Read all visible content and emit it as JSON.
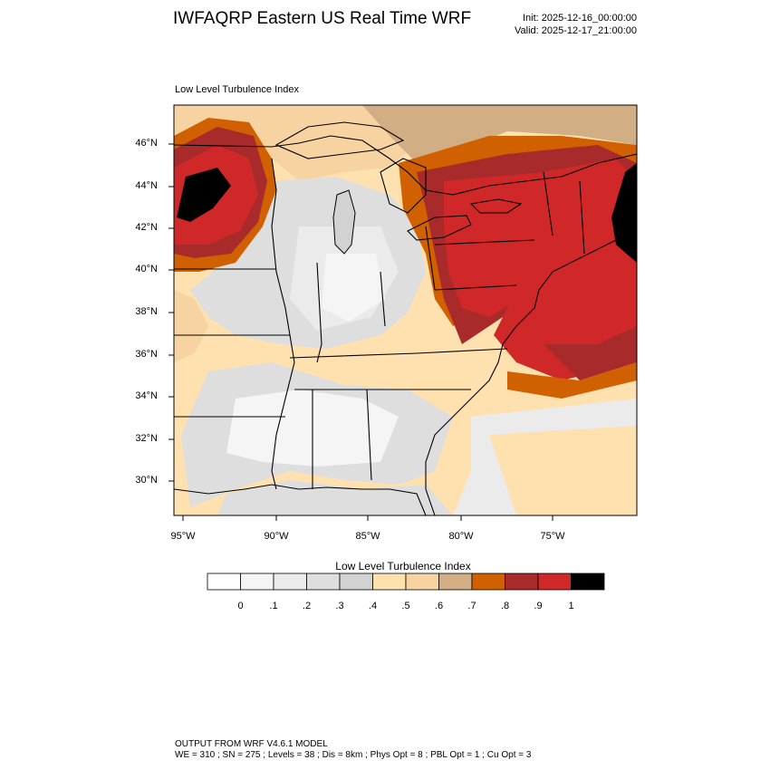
{
  "header": {
    "title": "IWFAQRP Eastern US Real Time WRF",
    "init": "Init: 2025-12-16_00:00:00",
    "valid": "Valid: 2025-12-17_21:00:00"
  },
  "map": {
    "subtitle": "Low Level Turbulence Index",
    "lat_labels": [
      "46°N",
      "44°N",
      "42°N",
      "40°N",
      "38°N",
      "36°N",
      "34°N",
      "32°N",
      "30°N"
    ],
    "lon_labels": [
      "95°W",
      "90°W",
      "85°W",
      "80°W",
      "75°W"
    ]
  },
  "colorbar": {
    "title": "Low Level Turbulence Index",
    "labels": [
      "0",
      ".1",
      ".2",
      ".3",
      ".4",
      ".5",
      ".6",
      ".7",
      ".8",
      ".9",
      "1"
    ],
    "colors": [
      "#ffffff",
      "#f5f5f5",
      "#ebebeb",
      "#dedede",
      "#d2d2d2",
      "#ffe1b0",
      "#f8d3a2",
      "#d2ae84",
      "#d06000",
      "#a82a2a",
      "#d02828",
      "#000000"
    ]
  },
  "footer": {
    "line1": "OUTPUT FROM WRF V4.6.1 MODEL",
    "line2": "WE = 310 ; SN = 275 ; Levels = 38 ; Dis = 8km ; Phys Opt = 8 ; PBL Opt = 1 ; Cu Opt = 3"
  }
}
